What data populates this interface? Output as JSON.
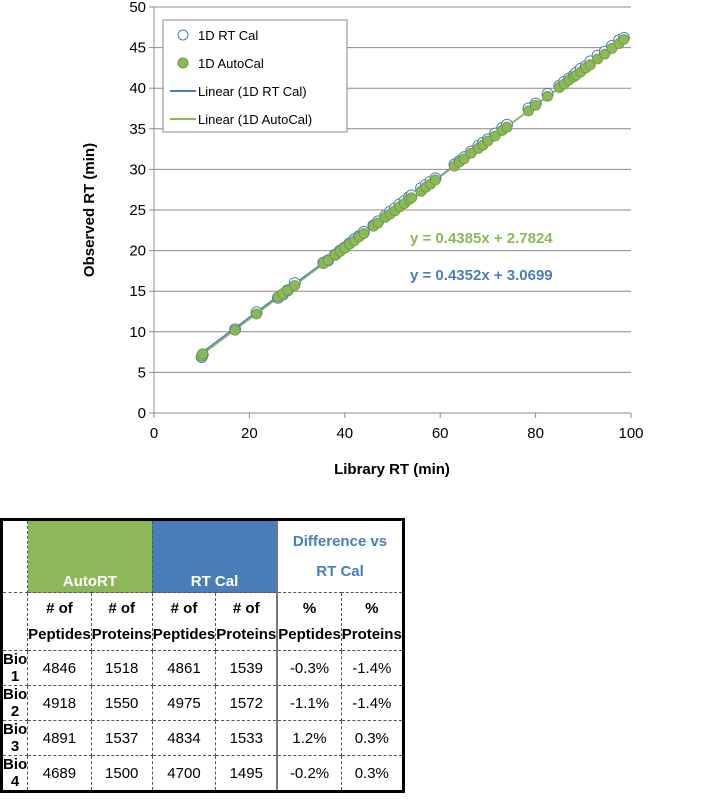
{
  "chart_data": {
    "type": "scatter",
    "xlabel": "Library RT (min)",
    "ylabel": "Observed RT (min)",
    "xlim": [
      0,
      100
    ],
    "ylim": [
      0,
      50
    ],
    "xticks": [
      "0",
      "20",
      "40",
      "60",
      "80",
      "100"
    ],
    "yticks": [
      "0",
      "5",
      "10",
      "15",
      "20",
      "25",
      "30",
      "35",
      "40",
      "45",
      "50"
    ],
    "grid": "horizontal",
    "legend_position": "top-left",
    "legend": [
      "1D RT Cal",
      "1D AutoCal",
      "Linear (1D RT Cal)",
      "Linear (1D AutoCal)"
    ],
    "series": [
      {
        "name": "1D RT Cal",
        "marker": "open-circle",
        "color": "#4a7ebb",
        "x": [
          10,
          10.2,
          17,
          21.5,
          26,
          27,
          28,
          29.5,
          35.5,
          36.5,
          38,
          39,
          40,
          41,
          42,
          43,
          44,
          46,
          47,
          48.5,
          49.5,
          50.5,
          51.5,
          52.5,
          53.5,
          54,
          56,
          57,
          58,
          59,
          63,
          64,
          65,
          66.5,
          68,
          69,
          70,
          71.5,
          73,
          74,
          78.5,
          80,
          82.5,
          85,
          86,
          87,
          88,
          88.5,
          89.5,
          90.5,
          91.5,
          93,
          94.5,
          96,
          97.5,
          98.5
        ],
        "y": [
          6.9,
          7.2,
          10.3,
          12.4,
          14.2,
          14.6,
          15.1,
          16.0,
          18.5,
          18.8,
          19.5,
          20.0,
          20.4,
          20.9,
          21.4,
          21.8,
          22.3,
          23.1,
          23.6,
          24.3,
          24.8,
          25.2,
          25.7,
          26.1,
          26.6,
          26.8,
          27.7,
          28.1,
          28.5,
          28.9,
          30.6,
          31.0,
          31.5,
          32.2,
          32.9,
          33.3,
          33.7,
          34.4,
          35.1,
          35.5,
          37.5,
          38.1,
          39.3,
          40.3,
          40.8,
          41.2,
          41.6,
          41.9,
          42.4,
          42.7,
          43.3,
          44.0,
          44.5,
          45.2,
          45.9,
          46.2
        ]
      },
      {
        "name": "1D AutoCal",
        "marker": "filled-circle",
        "color": "#8cb85a",
        "x": [
          10,
          10.2,
          17,
          21.5,
          26,
          27,
          28,
          29.5,
          35.5,
          36.5,
          38,
          39,
          40,
          41,
          42,
          43,
          44,
          46,
          47,
          48.5,
          49.5,
          50.5,
          51.5,
          52.5,
          53.5,
          54,
          56,
          57,
          58,
          59,
          63,
          64,
          65,
          66.5,
          68,
          69,
          70,
          71.5,
          73,
          74,
          78.5,
          80,
          82.5,
          85,
          86,
          87,
          88,
          88.5,
          89.5,
          90.5,
          91.5,
          93,
          94.5,
          96,
          97.5,
          98.5
        ],
        "y": [
          7.0,
          7.3,
          10.2,
          12.2,
          14.3,
          14.7,
          15.1,
          15.7,
          18.4,
          18.8,
          19.5,
          19.9,
          20.3,
          20.8,
          21.2,
          21.7,
          22.1,
          23.0,
          23.4,
          24.1,
          24.5,
          24.9,
          25.4,
          25.8,
          26.3,
          26.5,
          27.3,
          27.8,
          28.2,
          28.7,
          30.4,
          30.9,
          31.3,
          32.0,
          32.6,
          33.0,
          33.5,
          34.1,
          34.8,
          35.2,
          37.2,
          37.9,
          39.0,
          40.1,
          40.5,
          41.0,
          41.4,
          41.6,
          42.0,
          42.5,
          42.9,
          43.6,
          44.2,
          44.9,
          45.5,
          46.0
        ]
      }
    ],
    "trendlines": [
      {
        "name": "Linear (1D RT Cal)",
        "slope": 0.4352,
        "intercept": 3.0699,
        "x_range": [
          9.5,
          98.5
        ],
        "color": "#4a7ebb",
        "equation": "y = 0.4352x + 3.0699"
      },
      {
        "name": "Linear (1D AutoCal)",
        "slope": 0.4385,
        "intercept": 2.7824,
        "x_range": [
          9.5,
          98.5
        ],
        "color": "#8cb85a",
        "equation": "y = 0.4385x + 2.7824"
      }
    ]
  },
  "table": {
    "group_headers": {
      "autort": "AutoRT",
      "rtcal": "RT Cal",
      "diff_line1": "Difference vs",
      "diff_line2": "RT Cal"
    },
    "sub_headers": {
      "count_prefix": "# of",
      "pct_prefix": "%",
      "peptides": "Peptides",
      "proteins": "Proteins"
    },
    "rows": [
      {
        "label": "Bio 1",
        "auto_pep": "4846",
        "auto_prot": "1518",
        "rt_pep": "4861",
        "rt_prot": "1539",
        "diff_pep": "-0.3%",
        "diff_prot": "-1.4%"
      },
      {
        "label": "Bio 2",
        "auto_pep": "4918",
        "auto_prot": "1550",
        "rt_pep": "4975",
        "rt_prot": "1572",
        "diff_pep": "-1.1%",
        "diff_prot": "-1.4%"
      },
      {
        "label": "Bio 3",
        "auto_pep": "4891",
        "auto_prot": "1537",
        "rt_pep": "4834",
        "rt_prot": "1533",
        "diff_pep": "1.2%",
        "diff_prot": "0.3%"
      },
      {
        "label": "Bio 4",
        "auto_pep": "4689",
        "auto_prot": "1500",
        "rt_pep": "4700",
        "rt_prot": "1495",
        "diff_pep": "-0.2%",
        "diff_prot": "0.3%"
      }
    ],
    "colors": {
      "autort": "#8cb85a",
      "rtcal": "#4a7ebb",
      "diff_text": "#4a7ebb"
    }
  }
}
